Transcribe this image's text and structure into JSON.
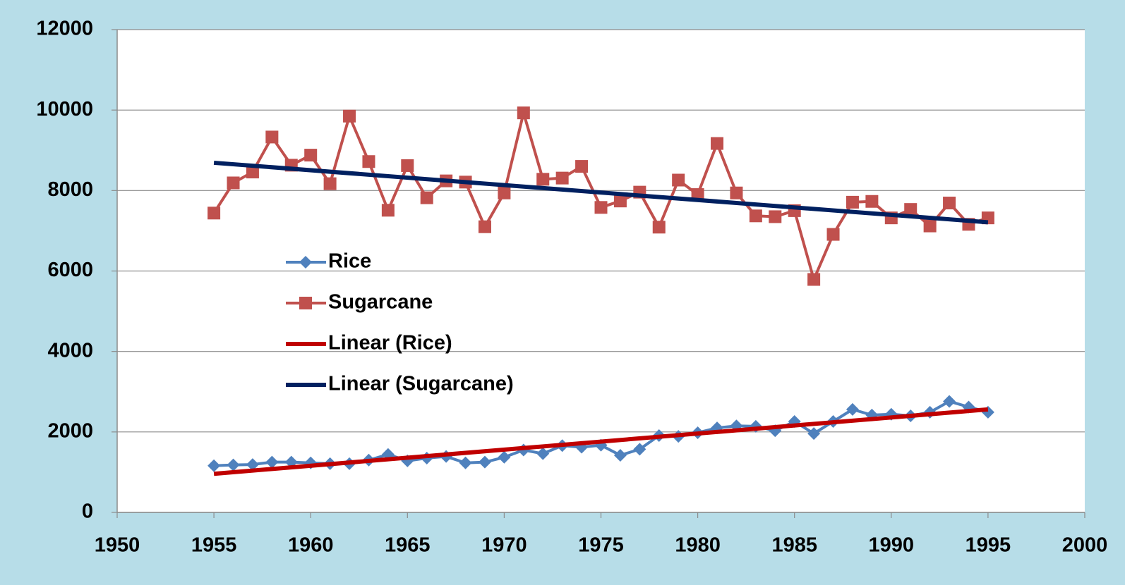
{
  "chart_data": {
    "type": "line",
    "x": [
      1955,
      1956,
      1957,
      1958,
      1959,
      1960,
      1961,
      1962,
      1963,
      1964,
      1965,
      1966,
      1967,
      1968,
      1969,
      1970,
      1971,
      1972,
      1973,
      1974,
      1975,
      1976,
      1977,
      1978,
      1979,
      1980,
      1981,
      1982,
      1983,
      1984,
      1985,
      1986,
      1987,
      1988,
      1989,
      1990,
      1991,
      1992,
      1993,
      1994,
      1995
    ],
    "series": [
      {
        "name": "Rice",
        "color": "#4f81bd",
        "marker": "diamond",
        "values": [
          1160,
          1180,
          1190,
          1250,
          1250,
          1230,
          1210,
          1210,
          1300,
          1440,
          1280,
          1350,
          1390,
          1230,
          1250,
          1370,
          1550,
          1460,
          1660,
          1620,
          1670,
          1420,
          1570,
          1910,
          1890,
          1980,
          2100,
          2150,
          2140,
          2030,
          2260,
          1960,
          2260,
          2560,
          2420,
          2440,
          2400,
          2490,
          2760,
          2620,
          2490
        ]
      },
      {
        "name": "Sugarcane",
        "color": "#c0504d",
        "marker": "square",
        "values": [
          7440,
          8190,
          8460,
          9330,
          8630,
          8880,
          8170,
          9850,
          8720,
          7510,
          8620,
          7820,
          8240,
          8210,
          7100,
          7940,
          9930,
          8280,
          8310,
          8600,
          7580,
          7740,
          7960,
          7090,
          8260,
          7900,
          9170,
          7940,
          7370,
          7350,
          7500,
          5790,
          6910,
          7710,
          7730,
          7320,
          7530,
          7120,
          7690,
          7160,
          7320
        ]
      },
      {
        "name": "Linear (Rice)",
        "color": "#c00000",
        "x": [
          1955,
          1995
        ],
        "values": [
          960,
          2560
        ]
      },
      {
        "name": "Linear (Sugarcane)",
        "color": "#002060",
        "x": [
          1955,
          1995
        ],
        "values": [
          8690,
          7210
        ]
      }
    ],
    "xlim": [
      1950,
      2000
    ],
    "xticks": [
      1950,
      1955,
      1960,
      1965,
      1970,
      1975,
      1980,
      1985,
      1990,
      1995,
      2000
    ],
    "ylim": [
      0,
      12000
    ],
    "yticks": [
      0,
      2000,
      4000,
      6000,
      8000,
      10000,
      12000
    ],
    "grid": true
  }
}
